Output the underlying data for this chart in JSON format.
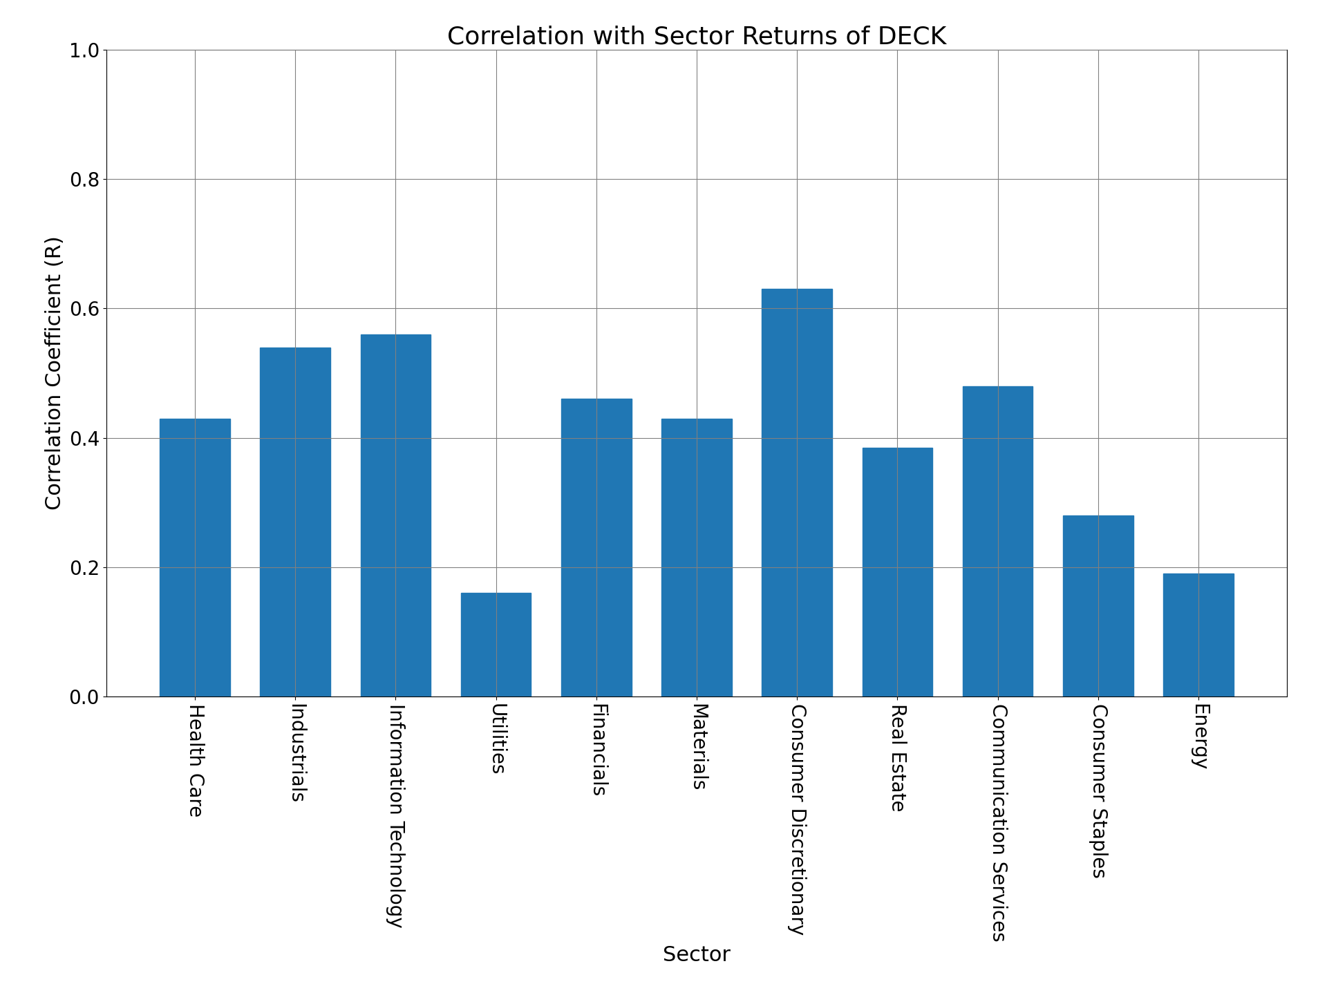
{
  "title": "Correlation with Sector Returns of DECK",
  "xlabel": "Sector",
  "ylabel": "Correlation Coefficient (R)",
  "categories": [
    "Health Care",
    "Industrials",
    "Information Technology",
    "Utilities",
    "Financials",
    "Materials",
    "Consumer Discretionary",
    "Real Estate",
    "Communication Services",
    "Consumer Staples",
    "Energy"
  ],
  "values": [
    0.43,
    0.54,
    0.56,
    0.16,
    0.46,
    0.43,
    0.63,
    0.385,
    0.48,
    0.28,
    0.19
  ],
  "bar_color": "#2077b4",
  "ylim": [
    0.0,
    1.0
  ],
  "yticks": [
    0.0,
    0.2,
    0.4,
    0.6,
    0.8,
    1.0
  ],
  "title_fontsize": 26,
  "label_fontsize": 22,
  "tick_fontsize": 20,
  "bar_width": 0.7,
  "figsize": [
    19.2,
    14.4
  ],
  "dpi": 100
}
